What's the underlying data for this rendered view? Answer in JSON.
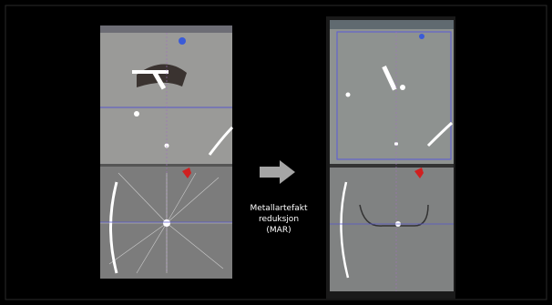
{
  "caption": {
    "lines": [
      "Metallartefakt",
      "reduksjon",
      "(MAR)"
    ]
  }
}
